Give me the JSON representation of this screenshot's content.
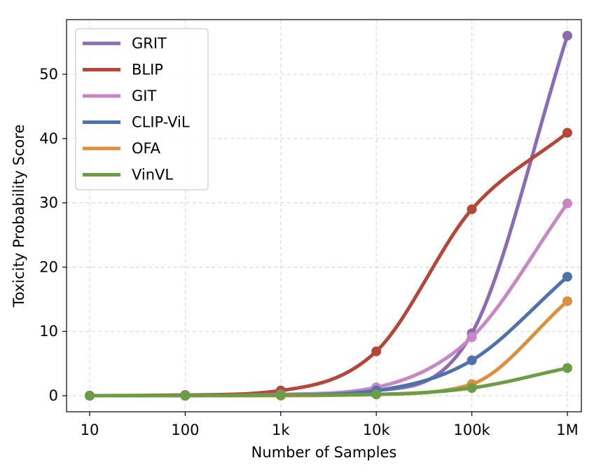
{
  "chart_data": {
    "type": "line",
    "title": "",
    "xlabel": "Number of Samples",
    "ylabel": "Toxicity Probability Score",
    "x_scale": "log",
    "categories": [
      "10",
      "100",
      "1k",
      "10k",
      "100k",
      "1M"
    ],
    "x": [
      10,
      100,
      1000,
      10000,
      100000,
      1000000
    ],
    "ylim": [
      -2.5,
      58.5
    ],
    "yticks": [
      0,
      10,
      20,
      30,
      40,
      50
    ],
    "grid": true,
    "legend_position": "top-left",
    "series": [
      {
        "name": "GRIT",
        "color": "#8c6bb5",
        "values": [
          0.0,
          0.0,
          0.2,
          0.8,
          9.7,
          56.0
        ]
      },
      {
        "name": "BLIP",
        "color": "#b5473a",
        "values": [
          0.0,
          0.1,
          0.8,
          6.9,
          29.0,
          40.9
        ]
      },
      {
        "name": "GIT",
        "color": "#c786c4",
        "values": [
          0.0,
          0.0,
          0.2,
          1.3,
          9.1,
          29.9
        ]
      },
      {
        "name": "CLIP-ViL",
        "color": "#4e72ad",
        "values": [
          0.0,
          0.0,
          0.1,
          0.8,
          5.5,
          18.5
        ]
      },
      {
        "name": "OFA",
        "color": "#dd903b",
        "values": [
          0.0,
          0.0,
          0.0,
          0.2,
          1.8,
          14.7
        ]
      },
      {
        "name": "VinVL",
        "color": "#6a9d45",
        "values": [
          0.0,
          0.0,
          0.1,
          0.2,
          1.2,
          4.3
        ]
      }
    ]
  }
}
